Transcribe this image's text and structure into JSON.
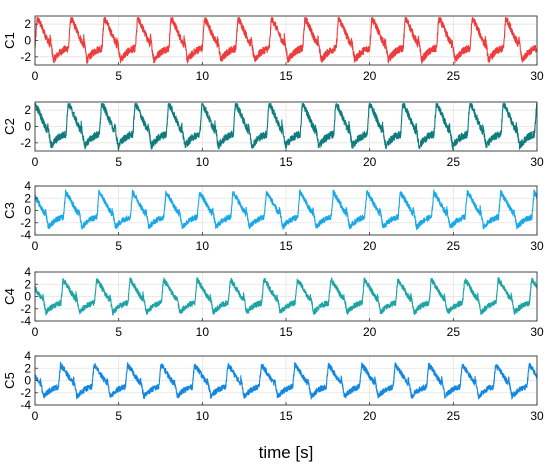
{
  "chart_data": {
    "type": "line",
    "xlabel": "time [s]",
    "xlim": [
      0,
      30
    ],
    "x_ticks": [
      0,
      5,
      10,
      15,
      20,
      25,
      30
    ],
    "grid": true,
    "legend": "none",
    "period_s": 2.0,
    "subplots": [
      {
        "name": "C1",
        "color": "#ee3b3b",
        "ylim": [
          -3,
          3
        ],
        "y_ticks": [
          -2,
          0,
          2
        ],
        "waveform": {
          "shape": "sawtooth-with-dip",
          "peak": 2.5,
          "trough": -2.4
        }
      },
      {
        "name": "C2",
        "color": "#0f7b7d",
        "ylim": [
          -3,
          3
        ],
        "y_ticks": [
          -2,
          0,
          2
        ],
        "waveform": {
          "shape": "sawtooth-with-dip",
          "peak": 2.6,
          "trough": -2.4
        }
      },
      {
        "name": "C3",
        "color": "#1aa7e8",
        "ylim": [
          -4,
          4
        ],
        "y_ticks": [
          -4,
          -2,
          0,
          2,
          4
        ],
        "waveform": {
          "shape": "sawtooth-with-dip",
          "peak": 2.7,
          "trough": -2.7
        }
      },
      {
        "name": "C4",
        "color": "#1ea3a6",
        "ylim": [
          -4,
          4
        ],
        "y_ticks": [
          -4,
          -2,
          0,
          2,
          4
        ],
        "waveform": {
          "shape": "sawtooth-with-dip",
          "peak": 2.5,
          "trough": -2.6
        }
      },
      {
        "name": "C5",
        "color": "#1387e0",
        "ylim": [
          -4,
          4
        ],
        "y_ticks": [
          -4,
          -2,
          0,
          2,
          4
        ],
        "waveform": {
          "shape": "sawtooth-with-dip",
          "peak": 2.3,
          "trough": -2.6
        }
      }
    ]
  }
}
